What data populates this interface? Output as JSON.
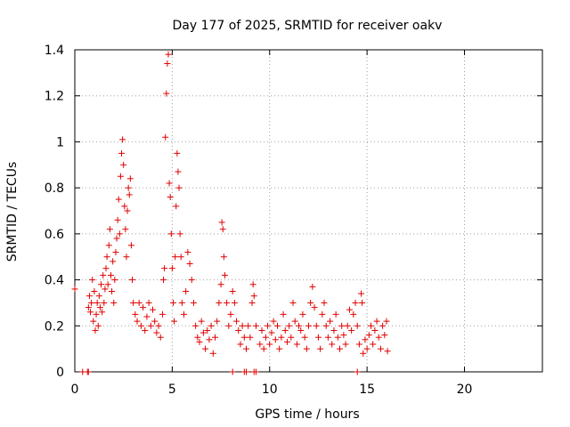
{
  "chart_data": {
    "type": "scatter",
    "title": "Day 177 of 2025, SRMTID for receiver oakv",
    "xlabel": "GPS time / hours",
    "ylabel": "SRMTID / TECUs",
    "xlim": [
      0,
      24
    ],
    "ylim": [
      0,
      1.4
    ],
    "xticks": [
      0,
      5,
      10,
      15,
      20
    ],
    "xtick_labels": [
      "0",
      "5",
      "10",
      "15",
      "20"
    ],
    "yticks": [
      0,
      0.2,
      0.4,
      0.6,
      0.8,
      1.0,
      1.2,
      1.4
    ],
    "ytick_labels": [
      "0",
      "0.2",
      "0.4",
      "0.6",
      "0.8",
      "1",
      "1.2",
      "1.4"
    ],
    "grid": true,
    "marker": "+",
    "color": "#e00000",
    "series": [
      {
        "name": "SRMTID",
        "points": [
          [
            0.0,
            0.36
          ],
          [
            0.4,
            0.0
          ],
          [
            0.65,
            0.0
          ],
          [
            0.7,
            0.0
          ],
          [
            0.7,
            0.28
          ],
          [
            0.75,
            0.33
          ],
          [
            0.8,
            0.26
          ],
          [
            0.85,
            0.3
          ],
          [
            0.9,
            0.4
          ],
          [
            0.95,
            0.22
          ],
          [
            1.0,
            0.35
          ],
          [
            1.05,
            0.18
          ],
          [
            1.1,
            0.25
          ],
          [
            1.15,
            0.3
          ],
          [
            1.2,
            0.2
          ],
          [
            1.25,
            0.33
          ],
          [
            1.3,
            0.28
          ],
          [
            1.35,
            0.38
          ],
          [
            1.4,
            0.26
          ],
          [
            1.45,
            0.42
          ],
          [
            1.5,
            0.3
          ],
          [
            1.55,
            0.36
          ],
          [
            1.6,
            0.45
          ],
          [
            1.65,
            0.5
          ],
          [
            1.7,
            0.38
          ],
          [
            1.75,
            0.55
          ],
          [
            1.8,
            0.62
          ],
          [
            1.85,
            0.42
          ],
          [
            1.9,
            0.35
          ],
          [
            1.95,
            0.48
          ],
          [
            2.0,
            0.3
          ],
          [
            2.05,
            0.4
          ],
          [
            2.1,
            0.52
          ],
          [
            2.15,
            0.58
          ],
          [
            2.2,
            0.66
          ],
          [
            2.25,
            0.75
          ],
          [
            2.3,
            0.6
          ],
          [
            2.35,
            0.85
          ],
          [
            2.4,
            0.95
          ],
          [
            2.45,
            1.01
          ],
          [
            2.5,
            0.9
          ],
          [
            2.55,
            0.72
          ],
          [
            2.6,
            0.62
          ],
          [
            2.65,
            0.5
          ],
          [
            2.7,
            0.7
          ],
          [
            2.75,
            0.8
          ],
          [
            2.8,
            0.77
          ],
          [
            2.85,
            0.84
          ],
          [
            2.9,
            0.55
          ],
          [
            2.95,
            0.4
          ],
          [
            3.0,
            0.3
          ],
          [
            3.1,
            0.25
          ],
          [
            3.2,
            0.22
          ],
          [
            3.3,
            0.3
          ],
          [
            3.4,
            0.2
          ],
          [
            3.5,
            0.28
          ],
          [
            3.6,
            0.18
          ],
          [
            3.7,
            0.24
          ],
          [
            3.8,
            0.3
          ],
          [
            3.9,
            0.2
          ],
          [
            4.0,
            0.27
          ],
          [
            4.1,
            0.22
          ],
          [
            4.2,
            0.17
          ],
          [
            4.3,
            0.2
          ],
          [
            4.4,
            0.15
          ],
          [
            4.5,
            0.25
          ],
          [
            4.55,
            0.4
          ],
          [
            4.6,
            0.45
          ],
          [
            4.65,
            1.02
          ],
          [
            4.7,
            1.21
          ],
          [
            4.75,
            1.34
          ],
          [
            4.8,
            1.38
          ],
          [
            4.85,
            0.82
          ],
          [
            4.9,
            0.76
          ],
          [
            4.95,
            0.6
          ],
          [
            5.0,
            0.45
          ],
          [
            5.05,
            0.3
          ],
          [
            5.1,
            0.22
          ],
          [
            5.15,
            0.5
          ],
          [
            5.2,
            0.72
          ],
          [
            5.25,
            0.95
          ],
          [
            5.3,
            0.87
          ],
          [
            5.35,
            0.8
          ],
          [
            5.4,
            0.6
          ],
          [
            5.45,
            0.5
          ],
          [
            5.5,
            0.3
          ],
          [
            5.6,
            0.25
          ],
          [
            5.7,
            0.35
          ],
          [
            5.8,
            0.52
          ],
          [
            5.9,
            0.47
          ],
          [
            6.0,
            0.4
          ],
          [
            6.1,
            0.3
          ],
          [
            6.2,
            0.2
          ],
          [
            6.3,
            0.15
          ],
          [
            6.4,
            0.13
          ],
          [
            6.5,
            0.22
          ],
          [
            6.6,
            0.17
          ],
          [
            6.7,
            0.1
          ],
          [
            6.8,
            0.18
          ],
          [
            6.9,
            0.14
          ],
          [
            7.0,
            0.2
          ],
          [
            7.1,
            0.08
          ],
          [
            7.2,
            0.15
          ],
          [
            7.3,
            0.22
          ],
          [
            7.4,
            0.3
          ],
          [
            7.5,
            0.38
          ],
          [
            7.55,
            0.65
          ],
          [
            7.6,
            0.62
          ],
          [
            7.65,
            0.5
          ],
          [
            7.7,
            0.42
          ],
          [
            7.8,
            0.3
          ],
          [
            7.9,
            0.2
          ],
          [
            8.0,
            0.25
          ],
          [
            8.1,
            0.35
          ],
          [
            8.2,
            0.3
          ],
          [
            8.3,
            0.22
          ],
          [
            8.4,
            0.18
          ],
          [
            8.5,
            0.12
          ],
          [
            8.6,
            0.2
          ],
          [
            8.7,
            0.15
          ],
          [
            8.8,
            0.1
          ],
          [
            8.9,
            0.2
          ],
          [
            9.0,
            0.15
          ],
          [
            9.1,
            0.3
          ],
          [
            9.15,
            0.38
          ],
          [
            9.2,
            0.33
          ],
          [
            9.3,
            0.2
          ],
          [
            9.5,
            0.12
          ],
          [
            9.6,
            0.18
          ],
          [
            9.7,
            0.1
          ],
          [
            9.8,
            0.15
          ],
          [
            9.9,
            0.2
          ],
          [
            10.0,
            0.12
          ],
          [
            10.1,
            0.17
          ],
          [
            10.2,
            0.22
          ],
          [
            10.3,
            0.14
          ],
          [
            10.4,
            0.2
          ],
          [
            10.5,
            0.1
          ],
          [
            10.6,
            0.15
          ],
          [
            10.7,
            0.25
          ],
          [
            10.8,
            0.18
          ],
          [
            10.9,
            0.13
          ],
          [
            11.0,
            0.2
          ],
          [
            11.1,
            0.15
          ],
          [
            11.2,
            0.3
          ],
          [
            11.3,
            0.22
          ],
          [
            11.4,
            0.12
          ],
          [
            11.5,
            0.2
          ],
          [
            11.6,
            0.18
          ],
          [
            11.7,
            0.25
          ],
          [
            11.8,
            0.15
          ],
          [
            11.9,
            0.1
          ],
          [
            12.0,
            0.2
          ],
          [
            12.1,
            0.3
          ],
          [
            12.2,
            0.37
          ],
          [
            12.3,
            0.28
          ],
          [
            12.4,
            0.2
          ],
          [
            12.5,
            0.15
          ],
          [
            12.6,
            0.1
          ],
          [
            12.7,
            0.25
          ],
          [
            12.8,
            0.3
          ],
          [
            12.9,
            0.2
          ],
          [
            13.0,
            0.15
          ],
          [
            13.1,
            0.22
          ],
          [
            13.2,
            0.12
          ],
          [
            13.3,
            0.18
          ],
          [
            13.4,
            0.25
          ],
          [
            13.5,
            0.15
          ],
          [
            13.6,
            0.1
          ],
          [
            13.7,
            0.2
          ],
          [
            13.8,
            0.16
          ],
          [
            13.9,
            0.12
          ],
          [
            14.0,
            0.2
          ],
          [
            14.1,
            0.27
          ],
          [
            14.2,
            0.18
          ],
          [
            14.3,
            0.25
          ],
          [
            14.4,
            0.3
          ],
          [
            14.5,
            0.2
          ],
          [
            14.6,
            0.12
          ],
          [
            14.7,
            0.34
          ],
          [
            14.75,
            0.3
          ],
          [
            14.8,
            0.08
          ],
          [
            14.9,
            0.14
          ],
          [
            15.0,
            0.1
          ],
          [
            15.1,
            0.16
          ],
          [
            15.2,
            0.2
          ],
          [
            15.3,
            0.12
          ],
          [
            15.4,
            0.18
          ],
          [
            15.5,
            0.22
          ],
          [
            15.6,
            0.15
          ],
          [
            15.7,
            0.1
          ],
          [
            15.8,
            0.2
          ],
          [
            15.9,
            0.16
          ],
          [
            16.0,
            0.22
          ],
          [
            16.05,
            0.09
          ],
          [
            8.1,
            0.0
          ],
          [
            8.7,
            0.0
          ],
          [
            8.8,
            0.0
          ],
          [
            9.2,
            0.0
          ],
          [
            9.3,
            0.0
          ],
          [
            14.5,
            0.0
          ]
        ]
      }
    ]
  }
}
